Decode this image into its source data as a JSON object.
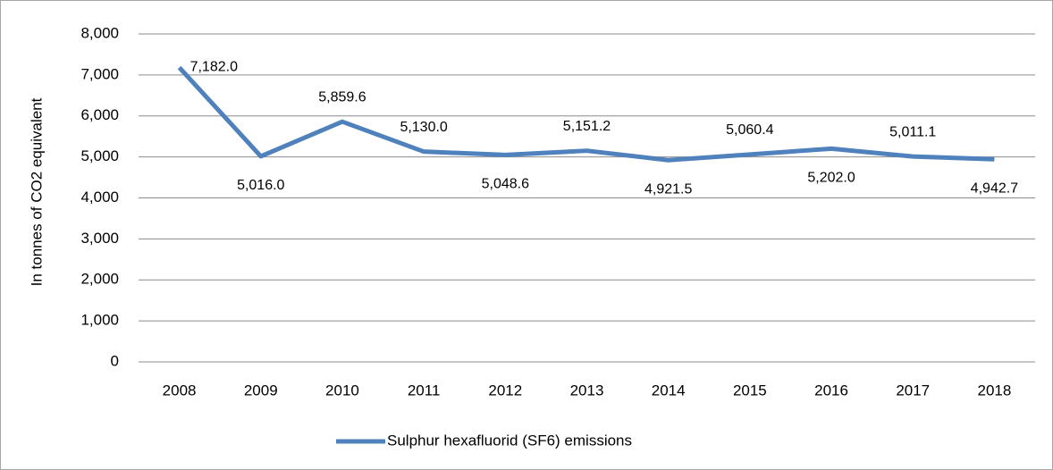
{
  "chart_data": {
    "type": "line",
    "y_label": "In tonnes of CO2 equivalent",
    "categories": [
      "2008",
      "2009",
      "2010",
      "2011",
      "2012",
      "2013",
      "2014",
      "2015",
      "2016",
      "2017",
      "2018"
    ],
    "series": [
      {
        "name": "Sulphur hexafluorid (SF6) emissions",
        "color": "#4f81bd",
        "values": [
          7182.0,
          5016.0,
          5859.6,
          5130.0,
          5048.6,
          5151.2,
          4921.5,
          5060.4,
          5202.0,
          5011.1,
          4942.7
        ],
        "value_labels": [
          "7,182.0",
          "5,016.0",
          "5,859.6",
          "5,130.0",
          "5,048.6",
          "5,151.2",
          "4,921.5",
          "5,060.4",
          "5,202.0",
          "5,011.1",
          "4,942.7"
        ]
      }
    ],
    "ylim": [
      0,
      8000
    ],
    "yticks": [
      0,
      {
        "value": 1000,
        "label": "1,000"
      },
      {
        "value": 2000,
        "label": "2,000"
      },
      {
        "value": 3000,
        "label": "3,000"
      },
      {
        "value": 4000,
        "label": "4,000"
      },
      {
        "value": 5000,
        "label": "5,000"
      },
      {
        "value": 6000,
        "label": "6,000"
      },
      {
        "value": 7000,
        "label": "7,000"
      },
      {
        "value": 8000,
        "label": "8,000"
      }
    ],
    "grid": true,
    "legend": "bottom"
  }
}
